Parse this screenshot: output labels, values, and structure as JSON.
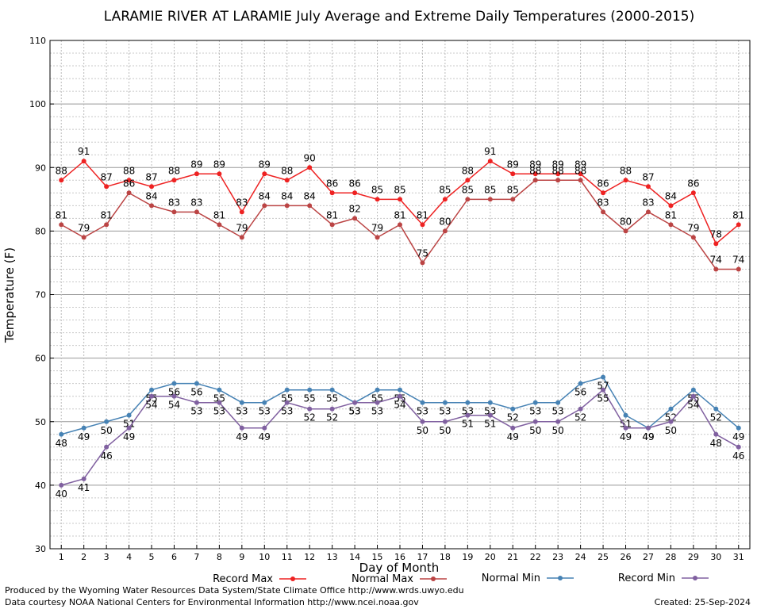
{
  "chart_data": {
    "type": "line",
    "title": "LARAMIE RIVER AT LARAMIE July Average and Extreme Daily Temperatures (2000-2015)",
    "xlabel": "Day of Month",
    "ylabel": "Temperature (F)",
    "x": [
      1,
      2,
      3,
      4,
      5,
      6,
      7,
      8,
      9,
      10,
      11,
      12,
      13,
      14,
      15,
      16,
      17,
      18,
      19,
      20,
      21,
      22,
      23,
      24,
      25,
      26,
      27,
      28,
      29,
      30,
      31
    ],
    "xlim": [
      0.5,
      31.5
    ],
    "ylim": [
      30,
      110
    ],
    "yticks": [
      30,
      40,
      50,
      60,
      70,
      80,
      90,
      100,
      110
    ],
    "grid": true,
    "legend_position": "bottom",
    "series": [
      {
        "name": "Record Max",
        "color": "#ee2222",
        "values": [
          88,
          91,
          87,
          88,
          87,
          88,
          89,
          89,
          83,
          89,
          88,
          90,
          86,
          86,
          85,
          85,
          81,
          85,
          88,
          91,
          89,
          89,
          89,
          89,
          86,
          88,
          87,
          84,
          86,
          78,
          81
        ]
      },
      {
        "name": "Normal Max",
        "color": "#bb4444",
        "values": [
          81,
          79,
          81,
          86,
          84,
          83,
          83,
          81,
          79,
          84,
          84,
          84,
          81,
          82,
          79,
          81,
          75,
          80,
          85,
          85,
          85,
          88,
          88,
          88,
          83,
          80,
          83,
          81,
          79,
          74,
          74
        ]
      },
      {
        "name": "Normal Min",
        "color": "#4682b4",
        "values": [
          48,
          49,
          50,
          51,
          55,
          56,
          56,
          55,
          53,
          53,
          55,
          55,
          55,
          53,
          55,
          55,
          53,
          53,
          53,
          53,
          52,
          53,
          53,
          56,
          57,
          51,
          49,
          52,
          55,
          52,
          49
        ]
      },
      {
        "name": "Record Min",
        "color": "#8060a0",
        "values": [
          40,
          41,
          46,
          49,
          54,
          54,
          53,
          53,
          49,
          49,
          53,
          52,
          52,
          53,
          53,
          54,
          50,
          50,
          51,
          51,
          49,
          50,
          50,
          52,
          55,
          49,
          49,
          50,
          54,
          48,
          46
        ]
      }
    ]
  },
  "footer": {
    "line1": "Produced by the Wyoming Water Resources Data System/State Climate Office http://www.wrds.uwyo.edu",
    "line2": "Data courtesy NOAA National Centers for Environmental Information http://www.ncei.noaa.gov",
    "created": "Created:  25-Sep-2024"
  }
}
